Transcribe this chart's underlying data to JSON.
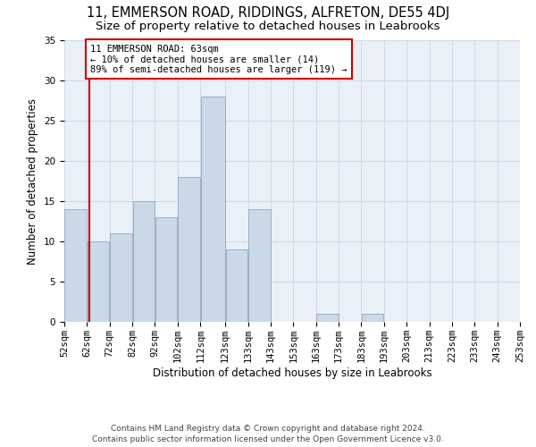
{
  "title": "11, EMMERSON ROAD, RIDDINGS, ALFRETON, DE55 4DJ",
  "subtitle": "Size of property relative to detached houses in Leabrooks",
  "xlabel": "Distribution of detached houses by size in Leabrooks",
  "ylabel": "Number of detached properties",
  "bins": [
    52,
    62,
    72,
    82,
    92,
    102,
    112,
    123,
    133,
    143,
    153,
    163,
    173,
    183,
    193,
    203,
    213,
    223,
    233,
    243,
    253
  ],
  "bin_labels": [
    "52sqm",
    "62sqm",
    "72sqm",
    "82sqm",
    "92sqm",
    "102sqm",
    "112sqm",
    "123sqm",
    "133sqm",
    "143sqm",
    "153sqm",
    "163sqm",
    "173sqm",
    "183sqm",
    "193sqm",
    "203sqm",
    "213sqm",
    "223sqm",
    "233sqm",
    "243sqm",
    "253sqm"
  ],
  "values": [
    14,
    10,
    11,
    15,
    13,
    18,
    28,
    9,
    14,
    0,
    0,
    1,
    0,
    1,
    0,
    0,
    0,
    0,
    0,
    0
  ],
  "bar_color": "#c9d9e8",
  "bar_edge_color": "#9ab0c4",
  "property_line_x": 63,
  "property_line_color": "#cc0000",
  "annotation_text": "11 EMMERSON ROAD: 63sqm\n← 10% of detached houses are smaller (14)\n89% of semi-detached houses are larger (119) →",
  "annotation_box_color": "#ffffff",
  "annotation_box_edge_color": "#cc0000",
  "ylim": [
    0,
    35
  ],
  "yticks": [
    0,
    5,
    10,
    15,
    20,
    25,
    30,
    35
  ],
  "grid_color": "#d0d8e8",
  "background_color": "#eaf0f8",
  "footer_text": "Contains HM Land Registry data © Crown copyright and database right 2024.\nContains public sector information licensed under the Open Government Licence v3.0.",
  "title_fontsize": 10.5,
  "subtitle_fontsize": 9.5,
  "xlabel_fontsize": 8.5,
  "ylabel_fontsize": 8.5,
  "tick_fontsize": 7.5,
  "annotation_fontsize": 7.5,
  "footer_fontsize": 6.5
}
